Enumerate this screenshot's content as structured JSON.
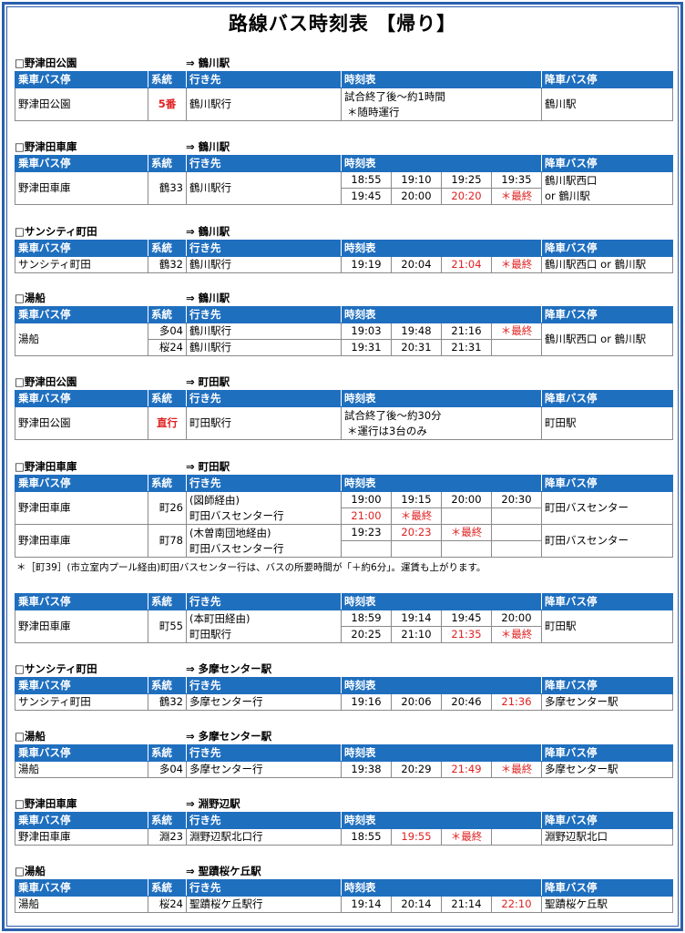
{
  "title": "路線バス時刻表 【帰り】",
  "headers": {
    "stop": "乗車バス停",
    "line": "系統",
    "dest": "行き先",
    "times": "時刻表",
    "alight": "降車バス停"
  },
  "sections": {
    "s1": {
      "from": "□野津田公園",
      "dest": "⇒ 鶴川駅",
      "stop": "野津田公園",
      "line": "5番",
      "dest_text": "鶴川駅行",
      "time1": "試合終了後～約1時間",
      "time2": "＊随時運行",
      "alight": "鶴川駅"
    },
    "s2": {
      "from": "□野津田車庫",
      "dest": "⇒ 鶴川駅",
      "stop": "野津田車庫",
      "line": "鶴33",
      "dest_text": "鶴川駅行",
      "t": [
        "18:55",
        "19:10",
        "19:25",
        "19:35",
        "19:45",
        "20:00",
        "20:20",
        "＊最終"
      ],
      "alight1": "鶴川駅西口",
      "alight2": "or 鶴川駅"
    },
    "s3": {
      "from": "□サンシティ町田",
      "dest": "⇒ 鶴川駅",
      "stop": "サンシティ町田",
      "line": "鶴32",
      "dest_text": "鶴川駅行",
      "t": [
        "19:19",
        "20:04",
        "21:04",
        "＊最終"
      ],
      "alight": "鶴川駅西口 or 鶴川駅"
    },
    "s4": {
      "from": "□湯船",
      "dest": "⇒ 鶴川駅",
      "stop": "湯船",
      "line1": "多04",
      "line2": "桜24",
      "dest1": "鶴川駅行",
      "dest2": "鶴川駅行",
      "t": [
        "19:03",
        "19:48",
        "21:16",
        "＊最終",
        "19:31",
        "20:31",
        "21:31"
      ],
      "alight": "鶴川駅西口 or 鶴川駅"
    },
    "s5": {
      "from": "□野津田公園",
      "dest": "⇒ 町田駅",
      "stop": "野津田公園",
      "line": "直行",
      "dest_text": "町田駅行",
      "time1": "試合終了後～約30分",
      "time2": "＊運行は3台のみ",
      "alight": "町田駅"
    },
    "s6": {
      "from": "□野津田車庫",
      "dest": "⇒ 町田駅",
      "stop1": "野津田車庫",
      "line1": "町26",
      "dest1a": "(図師経由)",
      "dest1b": "町田バスセンター行",
      "t1": [
        "19:00",
        "19:15",
        "20:00",
        "20:30",
        "21:00",
        "＊最終"
      ],
      "alight1": "町田バスセンター",
      "stop2": "野津田車庫",
      "line2": "町78",
      "dest2a": "(木曽南団地経由)",
      "dest2b": "町田バスセンター行",
      "t2": [
        "19:23",
        "20:23",
        "＊最終"
      ],
      "alight2": "町田バスセンター",
      "note": "＊［町39］(市立室内プール経由)町田バスセンター行は、バスの所要時間が「＋約6分」。運賃も上がります。"
    },
    "s7": {
      "stop": "野津田車庫",
      "line": "町55",
      "dest_a": "(本町田経由)",
      "dest_b": "町田駅行",
      "t": [
        "18:59",
        "19:14",
        "19:45",
        "20:00",
        "20:25",
        "21:10",
        "21:35",
        "＊最終"
      ],
      "alight": "町田駅"
    },
    "s8": {
      "from": "□サンシティ町田",
      "dest": "⇒ 多摩センター駅",
      "stop": "サンシティ町田",
      "line": "鶴32",
      "dest_text": "多摩センター行",
      "t": [
        "19:16",
        "20:06",
        "20:46",
        "21:36"
      ],
      "alight": "多摩センター駅"
    },
    "s9": {
      "from": "□湯船",
      "dest": "⇒ 多摩センター駅",
      "stop": "湯船",
      "line": "多04",
      "dest_text": "多摩センター行",
      "t": [
        "19:38",
        "20:29",
        "21:49",
        "＊最終"
      ],
      "alight": "多摩センター駅"
    },
    "s10": {
      "from": "□野津田車庫",
      "dest": "⇒ 淵野辺駅",
      "stop": "野津田車庫",
      "line": "淵23",
      "dest_text": "淵野辺駅北口行",
      "t": [
        "18:55",
        "19:55",
        "＊最終"
      ],
      "alight": "淵野辺駅北口"
    },
    "s11": {
      "from": "□湯船",
      "dest": "⇒ 聖蹟桜ケ丘駅",
      "stop": "湯船",
      "line": "桜24",
      "dest_text": "聖蹟桜ケ丘駅行",
      "t": [
        "19:14",
        "20:14",
        "21:14",
        "22:10"
      ],
      "alight": "聖蹟桜ケ丘駅"
    }
  },
  "colors": {
    "header_bg": "#1f6fbf",
    "frame": "#2b5fad",
    "accent_red": "#e02020"
  }
}
